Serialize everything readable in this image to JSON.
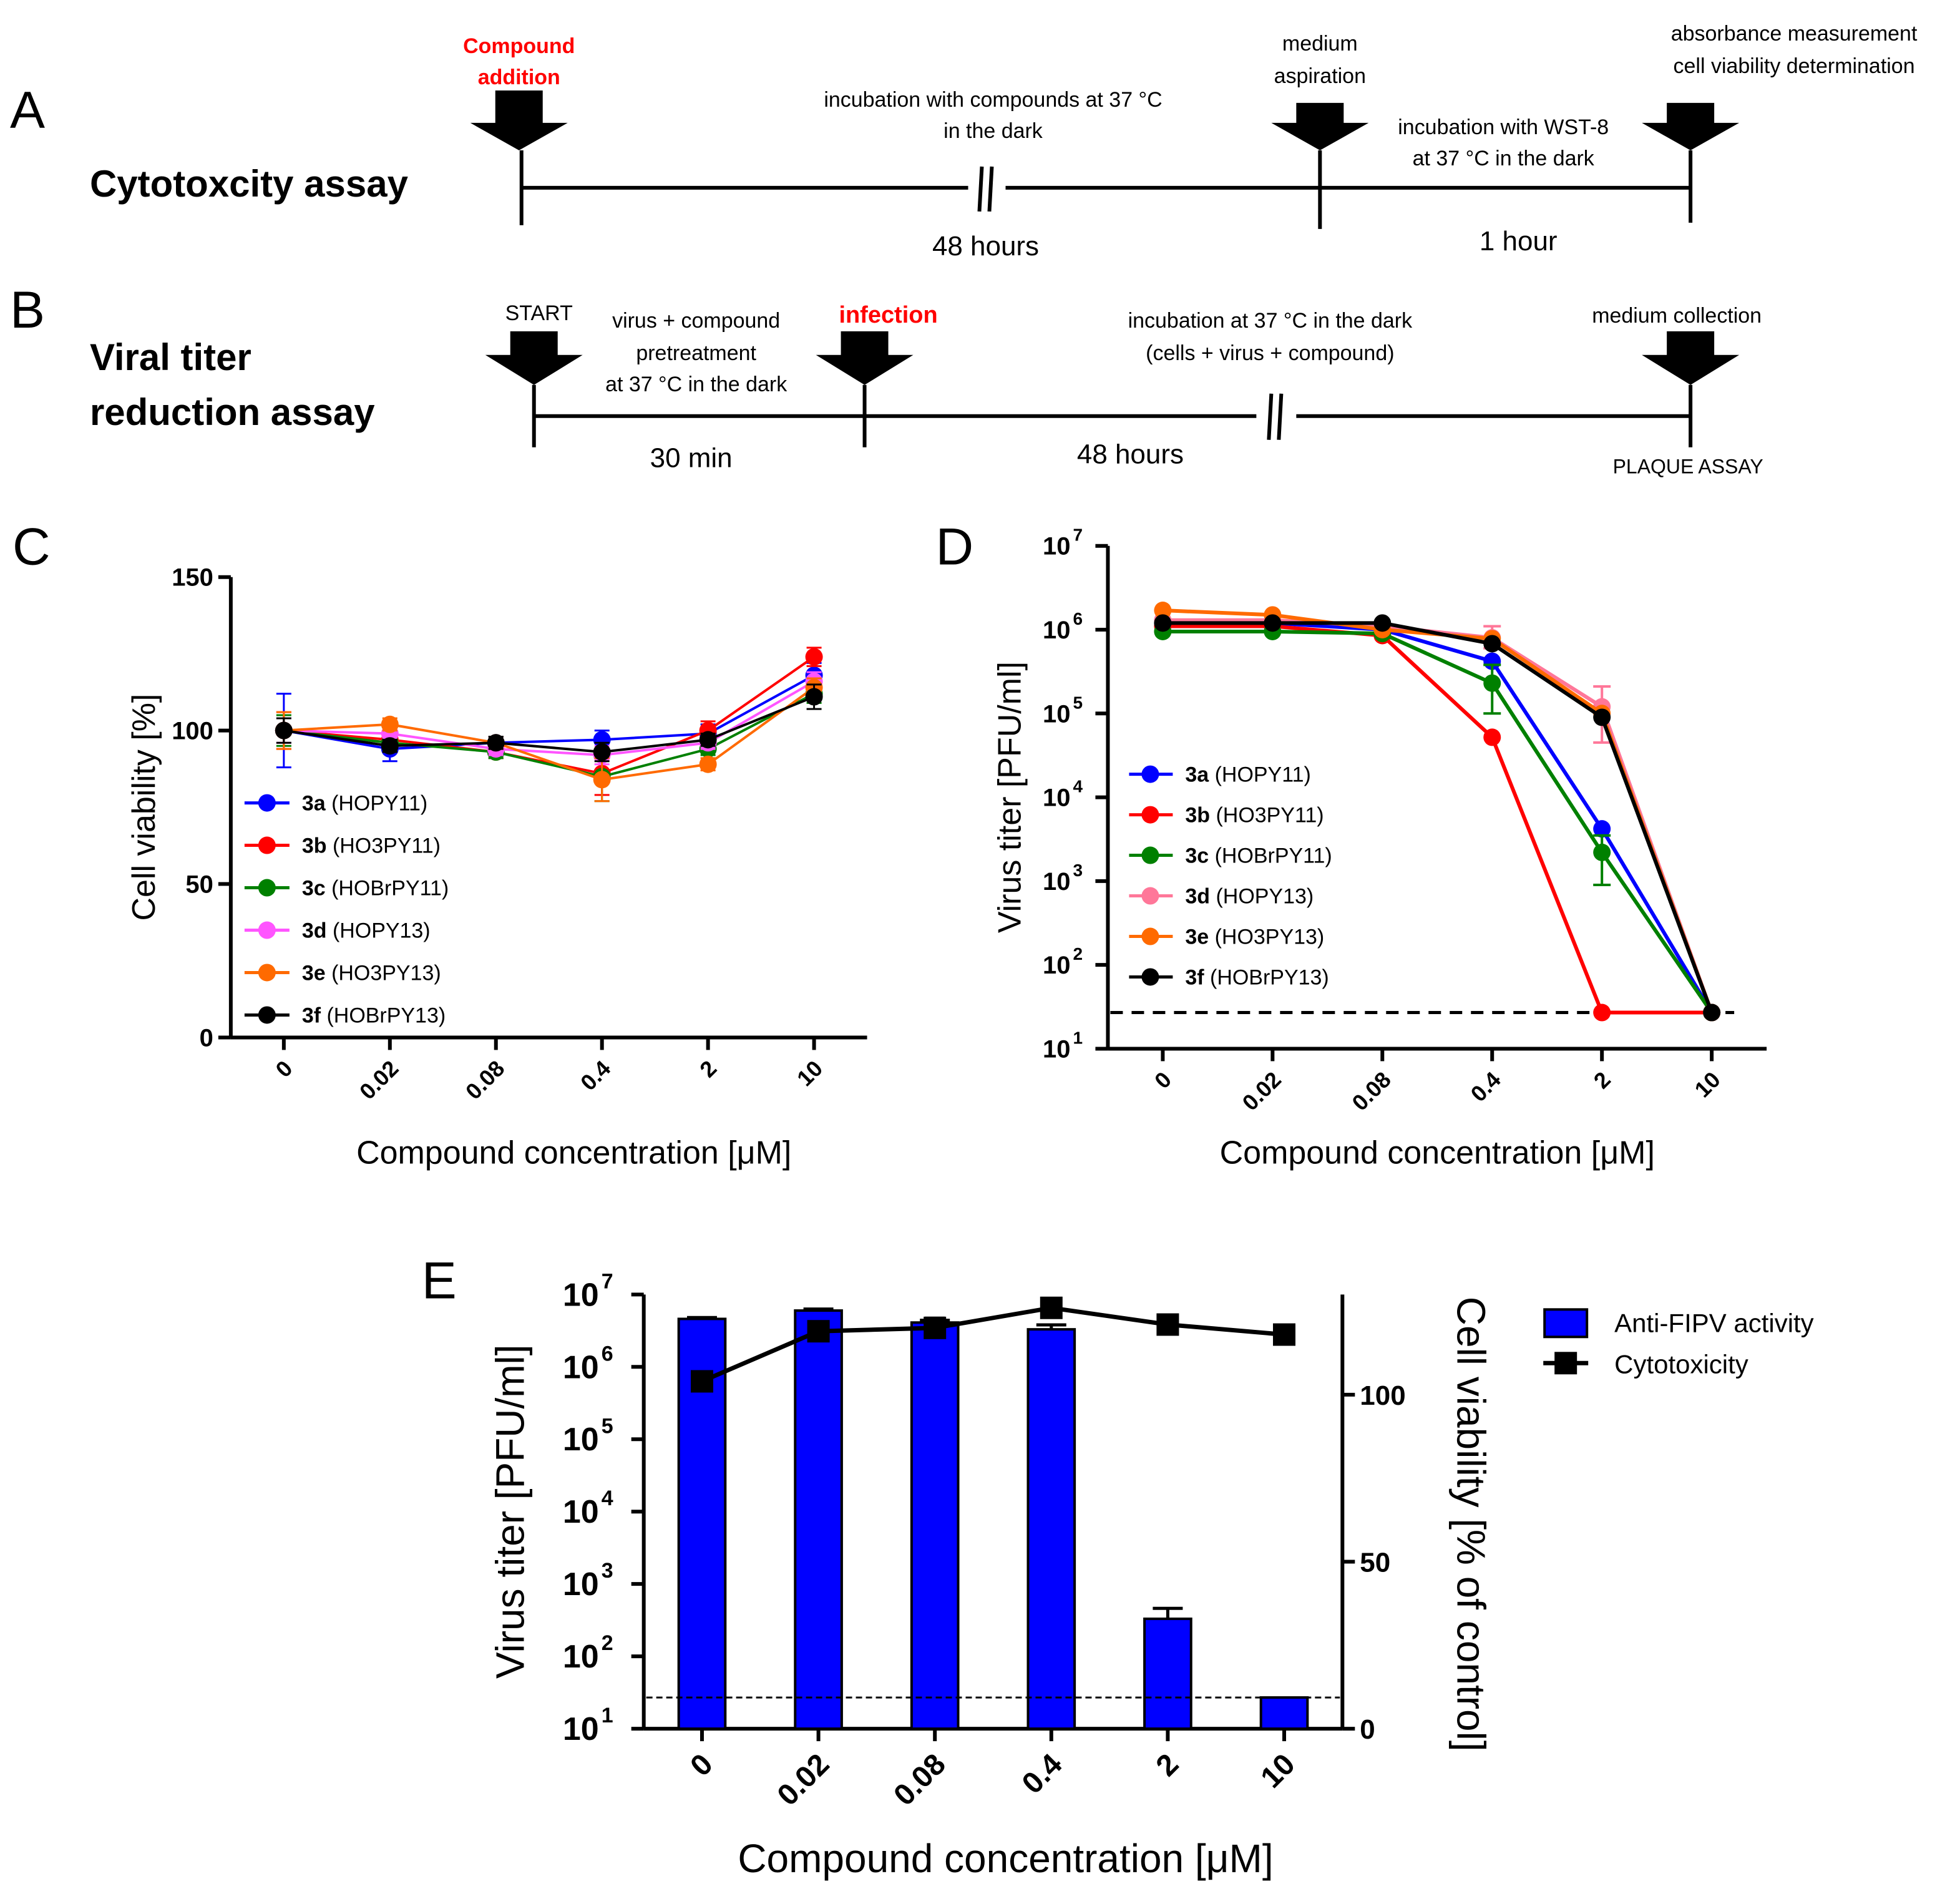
{
  "panel_a": {
    "label": "A",
    "title": "Cytotoxcity assay",
    "step1": [
      "Compound",
      "addition"
    ],
    "step2": [
      "medium",
      "aspiration"
    ],
    "step3": [
      "absorbance measurement",
      "cell viability determination"
    ],
    "incubation1": [
      "incubation with compounds at 37 °C",
      "in the dark"
    ],
    "incubation2": [
      "incubation with WST-8",
      "at 37 °C in the dark"
    ],
    "duration1": "48 hours",
    "duration2": "1 hour"
  },
  "panel_b": {
    "label": "B",
    "title": [
      "Viral titer",
      "reduction assay"
    ],
    "start": "START",
    "pretreatment": [
      "virus + compound",
      "pretreatment",
      "at 37 °C in the dark"
    ],
    "infection": "infection",
    "incubation": [
      "incubation at 37 °C in the dark",
      "(cells + virus + compound)"
    ],
    "collection": "medium collection",
    "final": "PLAQUE ASSAY",
    "duration1": "30 min",
    "duration2": "48 hours"
  },
  "colors": {
    "red": "#ff0000",
    "blue": "#0000ff",
    "green": "#008000",
    "magenta": "#ff55ff",
    "orange": "#ff6a00",
    "black": "#000000",
    "pink": "#ff7799"
  },
  "chart_data": [
    {
      "id": "C",
      "panel_label": "C",
      "type": "line",
      "categories": [
        "0",
        "0.02",
        "0.08",
        "0.4",
        "2",
        "10"
      ],
      "ylabel": "Cell viability [%]",
      "xlabel": "Compound concentration [μM]",
      "ylim": [
        0,
        150
      ],
      "yticks": [
        "0",
        "50",
        "100",
        "150"
      ],
      "legend_position": "center-left",
      "series": [
        {
          "key": "3a",
          "name": "(HOPY11)",
          "color": "#0000ff",
          "values": [
            100,
            94,
            96,
            97,
            99,
            118
          ],
          "errors": [
            12,
            4,
            2,
            3,
            3,
            4
          ]
        },
        {
          "key": "3b",
          "name": "(HO3PY11)",
          "color": "#ff0000",
          "values": [
            100,
            97,
            93,
            86,
            100,
            124
          ],
          "errors": [
            6,
            3,
            2,
            7,
            3,
            3
          ]
        },
        {
          "key": "3c",
          "name": "(HOBrPY11)",
          "color": "#008000",
          "values": [
            100,
            96,
            93,
            85,
            94,
            112
          ],
          "errors": [
            5,
            3,
            2,
            8,
            2,
            3
          ]
        },
        {
          "key": "3d",
          "name": "(HOPY13)",
          "color": "#ff55ff",
          "values": [
            100,
            99,
            94,
            92,
            96,
            116
          ],
          "errors": [
            4,
            3,
            2,
            3,
            2,
            3
          ]
        },
        {
          "key": "3e",
          "name": "(HO3PY13)",
          "color": "#ff6a00",
          "values": [
            100,
            102,
            96,
            84,
            89,
            114
          ],
          "errors": [
            6,
            2,
            2,
            7,
            2,
            3
          ]
        },
        {
          "key": "3f",
          "name": "(HOBrPY13)",
          "color": "#000000",
          "values": [
            100,
            95,
            96,
            93,
            97,
            111
          ],
          "errors": [
            4,
            2,
            2,
            3,
            2,
            4
          ]
        }
      ]
    },
    {
      "id": "D",
      "panel_label": "D",
      "type": "line",
      "yscale": "log",
      "categories": [
        "0",
        "0.02",
        "0.08",
        "0.4",
        "2",
        "10"
      ],
      "ylabel": "Virus titer [PFU/ml]",
      "xlabel": "Compound concentration [μM]",
      "ylim": [
        10,
        10000000
      ],
      "ytick_exponents": [
        "1",
        "2",
        "3",
        "4",
        "5",
        "6",
        "7"
      ],
      "detection_limit": 27,
      "legend_position": "center-left",
      "series": [
        {
          "key": "3a",
          "name": "(HOPY11)",
          "color": "#0000ff",
          "values": [
            1200000,
            1200000,
            1000000,
            420000,
            4200,
            27
          ]
        },
        {
          "key": "3b",
          "name": "(HO3PY11)",
          "color": "#ff0000",
          "values": [
            1100000,
            1100000,
            850000,
            52000,
            27,
            27
          ]
        },
        {
          "key": "3c",
          "name": "(HOBrPY11)",
          "color": "#008000",
          "values": [
            950000,
            950000,
            900000,
            230000,
            2200,
            27
          ],
          "err_low": [
            null,
            null,
            null,
            100000,
            900,
            null
          ],
          "err_high": [
            null,
            null,
            null,
            380000,
            3500,
            null
          ]
        },
        {
          "key": "3d",
          "name": "(HOPY13)",
          "color": "#ff7799",
          "values": [
            1300000,
            1300000,
            1100000,
            800000,
            120000,
            27
          ],
          "err_low": [
            null,
            null,
            null,
            600000,
            45000,
            null
          ],
          "err_high": [
            null,
            null,
            null,
            1100000,
            210000,
            null
          ]
        },
        {
          "key": "3e",
          "name": "(HO3PY13)",
          "color": "#ff6a00",
          "values": [
            1700000,
            1500000,
            1000000,
            780000,
            100000,
            27
          ]
        },
        {
          "key": "3f",
          "name": "(HOBrPY13)",
          "color": "#000000",
          "values": [
            1200000,
            1200000,
            1200000,
            680000,
            90000,
            27
          ]
        }
      ]
    },
    {
      "id": "E",
      "panel_label": "E",
      "type": "bar+line",
      "categories": [
        "0",
        "0.02",
        "0.08",
        "0.4",
        "2",
        "10"
      ],
      "xlabel": "Compound concentration [μM]",
      "ylabel_left": "Virus titer [PFU/ml]",
      "ylabel_right": "Cell viability [% of control]",
      "ylim_left": [
        10,
        10000000
      ],
      "ytick_exponents_left": [
        "1",
        "2",
        "3",
        "4",
        "5",
        "6",
        "7"
      ],
      "ylim_right": [
        0,
        130
      ],
      "yticks_right": [
        "0",
        "50",
        "100"
      ],
      "detection_limit": 27,
      "bars": {
        "name": "Anti-FIPV activity",
        "color": "#0000ff",
        "values": [
          4600000,
          6000000,
          4100000,
          3300000,
          330,
          27
        ],
        "err_high": [
          4800000,
          6300000,
          4400000,
          3800000,
          460,
          27
        ]
      },
      "line": {
        "name": "Cytotoxicity",
        "color": "#000000",
        "values": [
          104,
          119,
          120,
          126,
          121,
          118
        ],
        "errors": [
          2,
          2,
          3,
          2,
          1,
          1
        ]
      }
    }
  ]
}
